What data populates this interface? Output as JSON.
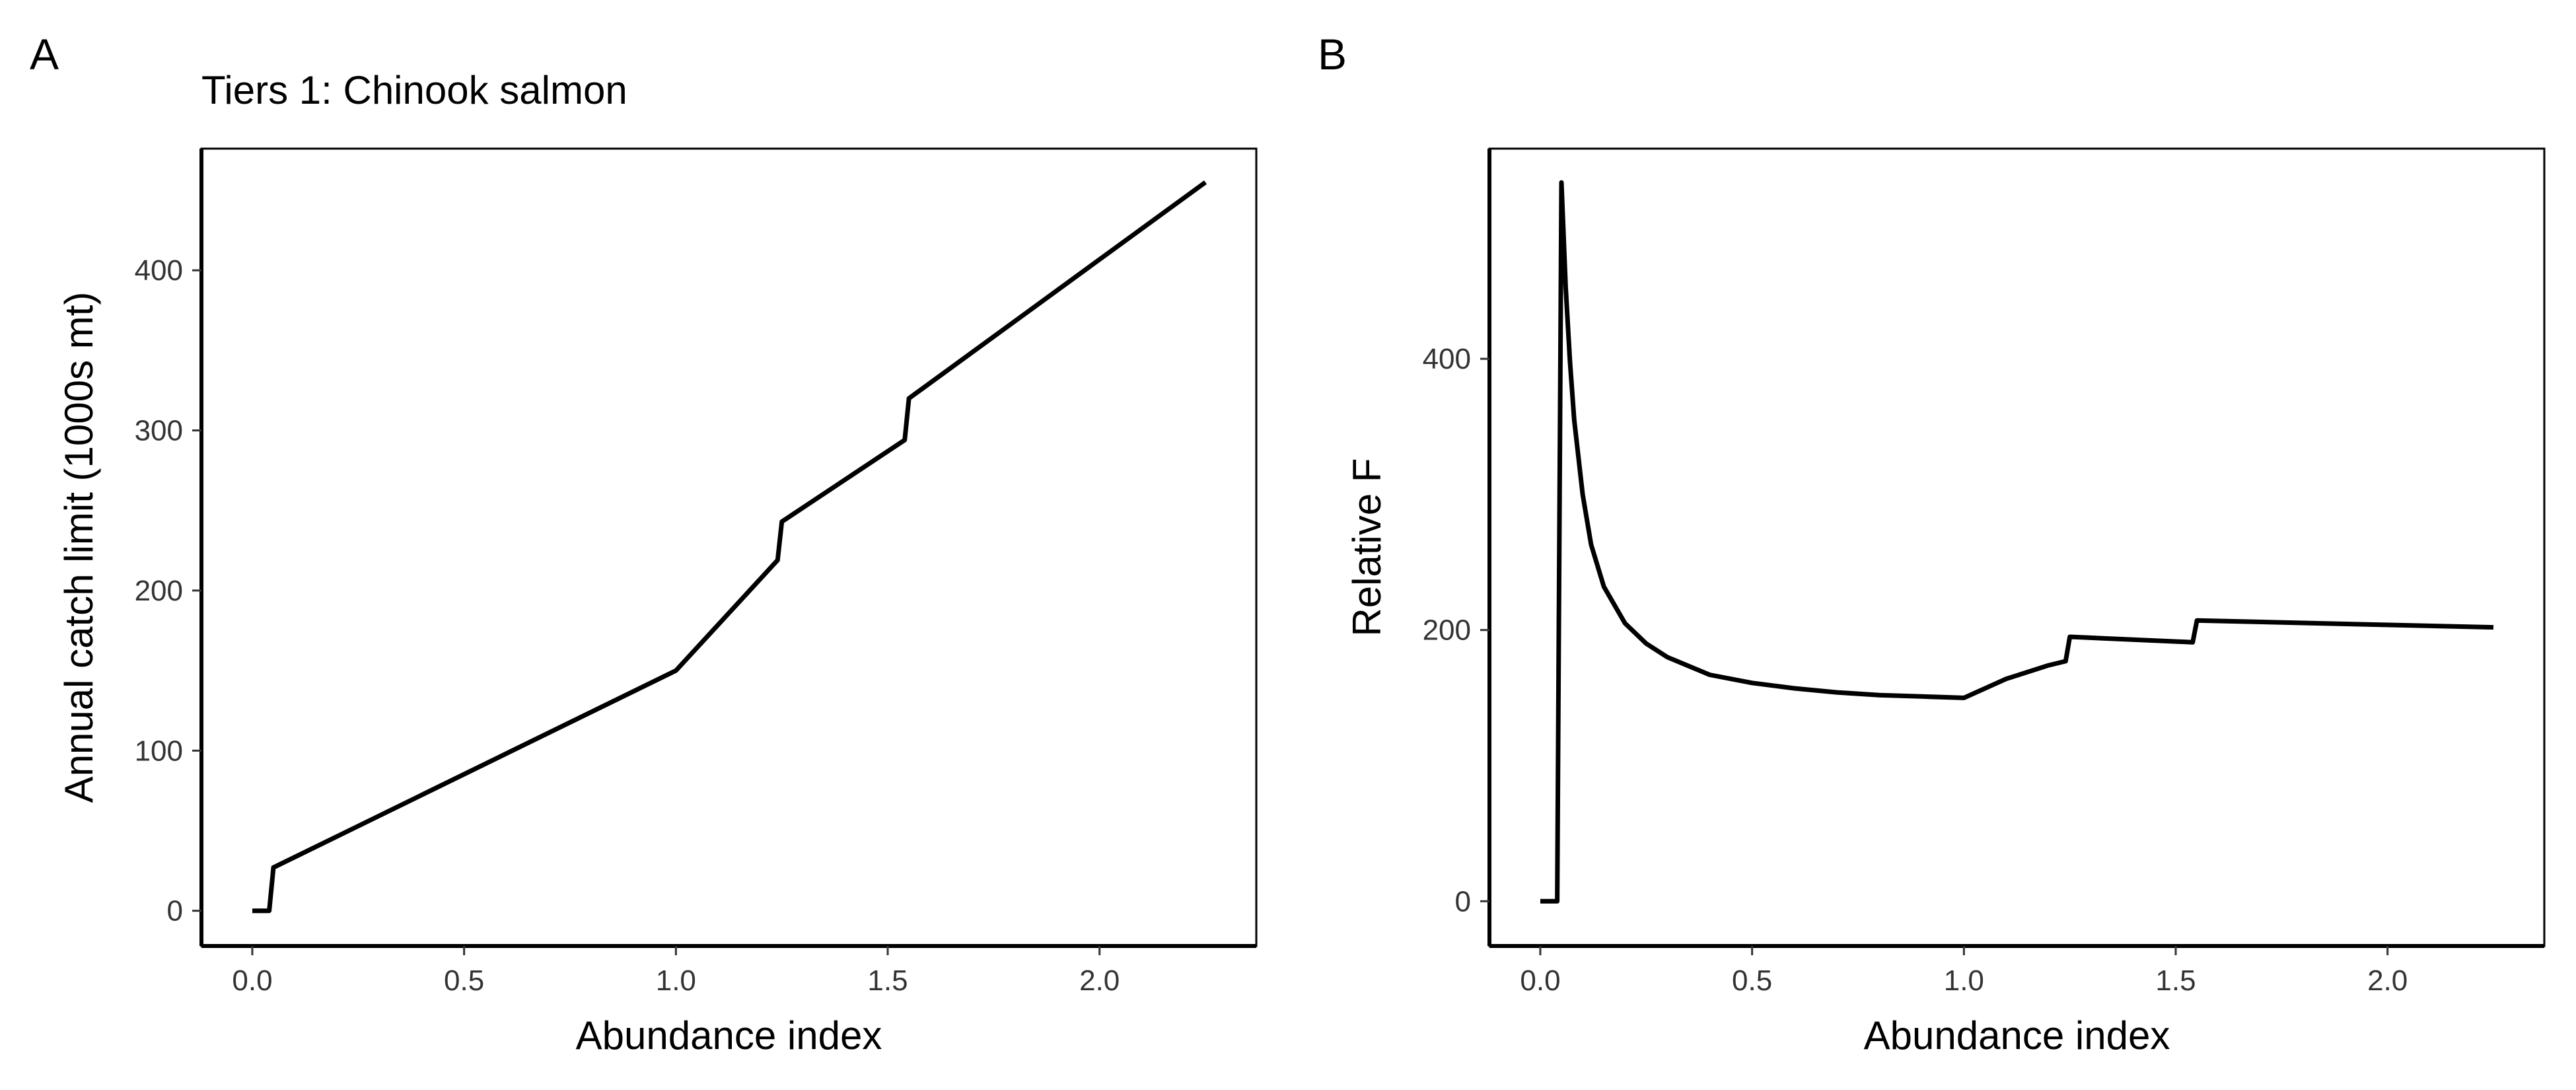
{
  "chart_data": [
    {
      "panel_label": "A",
      "type": "line",
      "title": "Tiers 1: Chinook salmon",
      "xlabel": "Abundance index",
      "ylabel": "Annual catch limit (1000s mt)",
      "xlim": [
        -0.12,
        2.37
      ],
      "ylim": [
        -22,
        476
      ],
      "xticks": [
        0.0,
        0.5,
        1.0,
        1.5,
        2.0
      ],
      "xtick_labels": [
        "0.0",
        "0.5",
        "1.0",
        "1.5",
        "2.0"
      ],
      "yticks": [
        0,
        100,
        200,
        300,
        400
      ],
      "ytick_labels": [
        "0",
        "100",
        "200",
        "300",
        "400"
      ],
      "grid": false,
      "color": "#000000",
      "x": [
        0.0,
        0.04,
        0.05,
        1.0,
        1.24,
        1.25,
        1.54,
        1.55,
        2.25
      ],
      "y": [
        0,
        0,
        27,
        150,
        219,
        243,
        294,
        320,
        455
      ]
    },
    {
      "panel_label": "B",
      "type": "line",
      "title": "",
      "xlabel": "Abundance index",
      "ylabel": "Relative F",
      "xlim": [
        -0.12,
        2.37
      ],
      "ylim": [
        -33,
        555
      ],
      "xticks": [
        0.0,
        0.5,
        1.0,
        1.5,
        2.0
      ],
      "xtick_labels": [
        "0.0",
        "0.5",
        "1.0",
        "1.5",
        "2.0"
      ],
      "yticks": [
        0,
        200,
        400
      ],
      "ytick_labels": [
        "0",
        "200",
        "400"
      ],
      "grid": false,
      "color": "#000000",
      "x": [
        0.0,
        0.04,
        0.05,
        0.06,
        0.07,
        0.08,
        0.1,
        0.12,
        0.15,
        0.2,
        0.25,
        0.3,
        0.4,
        0.5,
        0.6,
        0.7,
        0.8,
        0.9,
        1.0,
        1.1,
        1.2,
        1.24,
        1.25,
        1.54,
        1.55,
        2.25
      ],
      "y": [
        0,
        0,
        530,
        453,
        398,
        355,
        300,
        263,
        232,
        205,
        190,
        180,
        167,
        161,
        157,
        154,
        152,
        151,
        150,
        164,
        174,
        177,
        195,
        191,
        207,
        202
      ]
    }
  ]
}
